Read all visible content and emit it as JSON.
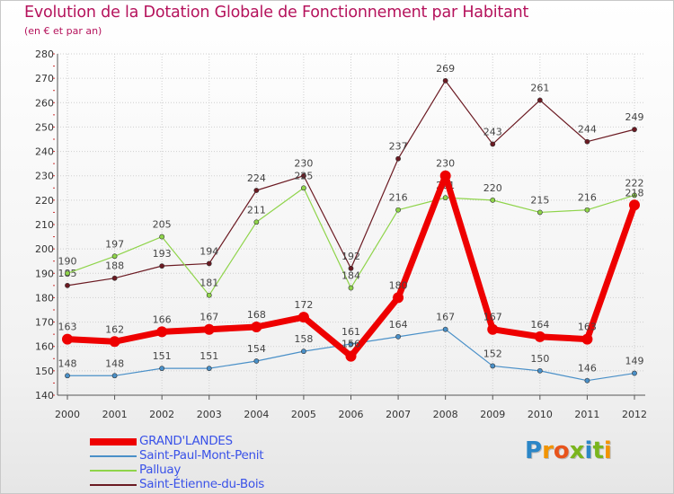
{
  "title": "Evolution de la Dotation Globale de Fonctionnement par Habitant",
  "subtitle": "(en € et par an)",
  "logo": {
    "letters": [
      "P",
      "r",
      "o",
      "x",
      "i",
      "t",
      "i"
    ],
    "colors": [
      "#2b86c7",
      "#f29400",
      "#e8541c",
      "#7ab51d",
      "#2b86c7",
      "#7ab51d",
      "#f29400"
    ]
  },
  "chart_data": {
    "type": "line",
    "title": "Evolution de la Dotation Globale de Fonctionnement par Habitant",
    "ylabel": "(en € et par an)",
    "xlabel": "",
    "ylim": [
      140,
      280
    ],
    "yticks": [
      140,
      150,
      160,
      170,
      180,
      190,
      200,
      210,
      220,
      230,
      240,
      250,
      260,
      270,
      280
    ],
    "grid": true,
    "categories": [
      "2000",
      "2001",
      "2002",
      "2003",
      "2004",
      "2005",
      "2006",
      "2007",
      "2008",
      "2009",
      "2010",
      "2011",
      "2012"
    ],
    "series": [
      {
        "name": "Saint-Étienne-du-Bois",
        "color": "#6b1a22",
        "width": 1.2,
        "marker": 2.6,
        "values": [
          185,
          188,
          193,
          194,
          224,
          230,
          192,
          237,
          269,
          243,
          261,
          244,
          249
        ]
      },
      {
        "name": "Palluay",
        "color": "#8fd44a",
        "width": 1.2,
        "marker": 2.6,
        "values": [
          190,
          197,
          205,
          181,
          211,
          225,
          184,
          216,
          221,
          220,
          215,
          216,
          222
        ]
      },
      {
        "name": "Saint-Paul-Mont-Penit",
        "color": "#4a90c8",
        "width": 1.2,
        "marker": 2.6,
        "values": [
          148,
          148,
          151,
          151,
          154,
          158,
          161,
          164,
          167,
          152,
          150,
          146,
          149
        ]
      },
      {
        "name": "GRAND'LANDES",
        "color": "#ee0000",
        "width": 7,
        "marker": 6,
        "values": [
          163,
          162,
          166,
          167,
          168,
          172,
          156,
          180,
          230,
          167,
          164,
          163,
          218
        ]
      }
    ],
    "legend_order": [
      "GRAND'LANDES",
      "Saint-Paul-Mont-Penit",
      "Palluay",
      "Saint-Étienne-du-Bois"
    ]
  }
}
